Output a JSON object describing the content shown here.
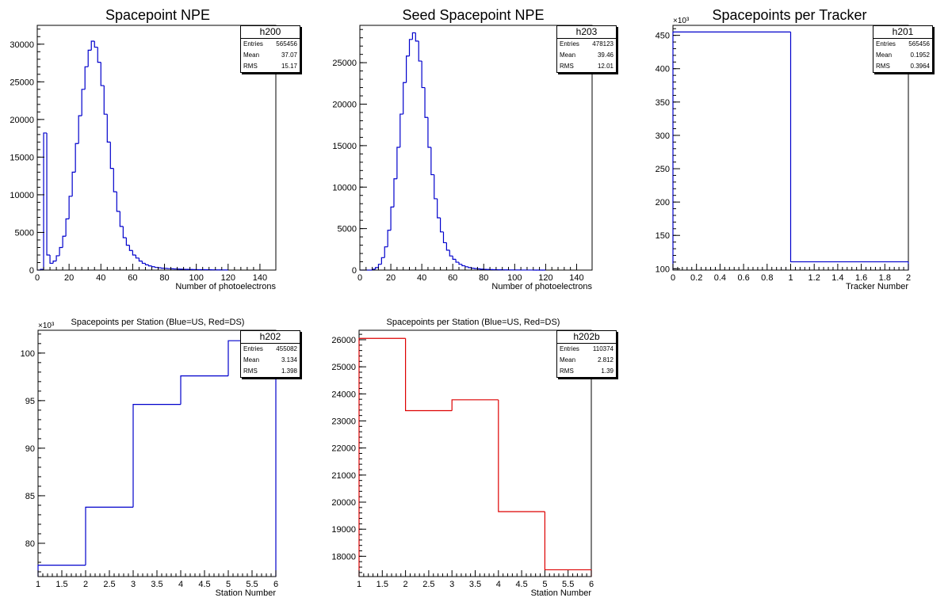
{
  "chart_data": [
    {
      "type": "bar",
      "id": "h200",
      "title": "Spacepoint NPE",
      "xlabel": "Number of photoelectrons",
      "ylabel": "",
      "xlim": [
        0,
        150
      ],
      "ylim": [
        0,
        32500
      ],
      "xticks": [
        0,
        20,
        40,
        60,
        80,
        100,
        120,
        140
      ],
      "xtick_labels": [
        "0",
        "20",
        "40",
        "60",
        "80",
        "100",
        "120",
        "140"
      ],
      "yticks": [
        0,
        5000,
        10000,
        15000,
        20000,
        25000,
        30000
      ],
      "ytick_labels": [
        "0",
        "5000",
        "10000",
        "15000",
        "20000",
        "25000",
        "30000"
      ],
      "y_exponent": "",
      "color": "#0000cc",
      "bin_edges": [
        0,
        2,
        4,
        6,
        8,
        10,
        12,
        14,
        16,
        18,
        20,
        22,
        24,
        26,
        28,
        30,
        32,
        34,
        36,
        38,
        40,
        42,
        44,
        46,
        48,
        50,
        52,
        54,
        56,
        58,
        60,
        62,
        64,
        66,
        68,
        70,
        72,
        74,
        76,
        78,
        80,
        82,
        84,
        86,
        88,
        90,
        92,
        94,
        96,
        98,
        100,
        102,
        104,
        106,
        108,
        110,
        112,
        114,
        116,
        118,
        120
      ],
      "values": [
        0,
        100,
        18200,
        2000,
        900,
        1200,
        1900,
        3000,
        4500,
        6800,
        9800,
        13000,
        16800,
        20500,
        24000,
        27000,
        29200,
        30400,
        29600,
        27600,
        24500,
        20700,
        17000,
        13500,
        10400,
        7800,
        5800,
        4300,
        3300,
        2600,
        2000,
        1600,
        1200,
        900,
        700,
        550,
        450,
        350,
        300,
        250,
        220,
        190,
        170,
        150,
        130,
        120,
        100,
        90,
        80,
        70,
        60,
        55,
        50,
        45,
        40,
        35,
        30,
        25,
        20,
        15
      ],
      "stats": {
        "name": "h200",
        "entries_label": "Entries",
        "entries": "565456",
        "mean_label": "Mean",
        "mean": "37.07",
        "rms_label": "RMS",
        "rms": "15.17"
      }
    },
    {
      "type": "bar",
      "id": "h203",
      "title": "Seed Spacepoint NPE",
      "xlabel": "Number of photoelectrons",
      "ylabel": "",
      "xlim": [
        0,
        150
      ],
      "ylim": [
        0,
        29500
      ],
      "xticks": [
        0,
        20,
        40,
        60,
        80,
        100,
        120,
        140
      ],
      "xtick_labels": [
        "0",
        "20",
        "40",
        "60",
        "80",
        "100",
        "120",
        "140"
      ],
      "yticks": [
        0,
        5000,
        10000,
        15000,
        20000,
        25000
      ],
      "ytick_labels": [
        "0",
        "5000",
        "10000",
        "15000",
        "20000",
        "25000"
      ],
      "y_exponent": "",
      "color": "#0000cc",
      "bin_edges": [
        0,
        2,
        4,
        6,
        8,
        10,
        12,
        14,
        16,
        18,
        20,
        22,
        24,
        26,
        28,
        30,
        32,
        34,
        36,
        38,
        40,
        42,
        44,
        46,
        48,
        50,
        52,
        54,
        56,
        58,
        60,
        62,
        64,
        66,
        68,
        70,
        72,
        74,
        76,
        78,
        80,
        82,
        84,
        86,
        88,
        90,
        92,
        94,
        96,
        98,
        100,
        102,
        104,
        106,
        108,
        110,
        112,
        114,
        116,
        118,
        120
      ],
      "values": [
        0,
        0,
        0,
        0,
        100,
        300,
        700,
        1500,
        2800,
        4800,
        7600,
        11000,
        14800,
        18800,
        22600,
        25800,
        27800,
        28600,
        27600,
        25200,
        22000,
        18400,
        14800,
        11500,
        8600,
        6300,
        4600,
        3300,
        2400,
        1700,
        1300,
        950,
        700,
        520,
        400,
        300,
        230,
        180,
        140,
        110,
        90,
        75,
        60,
        50,
        40,
        35,
        30,
        25,
        20,
        15,
        12,
        10,
        8,
        6,
        5,
        4,
        3,
        2,
        1,
        0
      ],
      "stats": {
        "name": "h203",
        "entries_label": "Entries",
        "entries": "478123",
        "mean_label": "Mean",
        "mean": "39.46",
        "rms_label": "RMS",
        "rms": "12.01"
      }
    },
    {
      "type": "bar",
      "id": "h201",
      "title": "Spacepoints per Tracker",
      "xlabel": "Tracker Number",
      "ylabel": "",
      "xlim": [
        0,
        2
      ],
      "ylim": [
        98,
        465
      ],
      "xticks": [
        0,
        0.2,
        0.4,
        0.6,
        0.8,
        1,
        1.2,
        1.4,
        1.6,
        1.8,
        2
      ],
      "xtick_labels": [
        "0",
        "0.2",
        "0.4",
        "0.6",
        "0.8",
        "1",
        "1.2",
        "1.4",
        "1.6",
        "1.8",
        "2"
      ],
      "yticks": [
        100,
        150,
        200,
        250,
        300,
        350,
        400,
        450
      ],
      "ytick_labels": [
        "100",
        "150",
        "200",
        "250",
        "300",
        "350",
        "400",
        "450"
      ],
      "y_exponent": "×10³",
      "color": "#0000cc",
      "bin_edges": [
        0,
        1,
        2
      ],
      "values": [
        455.082,
        110.374
      ],
      "stats": {
        "name": "h201",
        "entries_label": "Entries",
        "entries": "565456",
        "mean_label": "Mean",
        "mean": "0.1952",
        "rms_label": "RMS",
        "rms": "0.3964"
      }
    },
    {
      "type": "bar",
      "id": "h202",
      "title": "Spacepoints per Station (Blue=US, Red=DS)",
      "xlabel": "Station Number",
      "ylabel": "",
      "xlim": [
        1,
        6
      ],
      "ylim": [
        76.5,
        102.4
      ],
      "xticks": [
        1,
        1.5,
        2,
        2.5,
        3,
        3.5,
        4,
        4.5,
        5,
        5.5,
        6
      ],
      "xtick_labels": [
        "1",
        "1.5",
        "2",
        "2.5",
        "3",
        "3.5",
        "4",
        "4.5",
        "5",
        "5.5",
        "6"
      ],
      "yticks": [
        80,
        85,
        90,
        95,
        100
      ],
      "ytick_labels": [
        "80",
        "85",
        "90",
        "95",
        "100"
      ],
      "y_exponent": "×10³",
      "color": "#0000cc",
      "bin_edges": [
        1,
        2,
        3,
        4,
        5,
        6
      ],
      "values": [
        77.7,
        83.8,
        94.6,
        97.6,
        101.3
      ],
      "stats": {
        "name": "h202",
        "entries_label": "Entries",
        "entries": "455082",
        "mean_label": "Mean",
        "mean": "3.134",
        "rms_label": "RMS",
        "rms": "1.398"
      }
    },
    {
      "type": "bar",
      "id": "h202b",
      "title": "Spacepoints per Station (Blue=US, Red=DS)",
      "xlabel": "Station Number",
      "ylabel": "",
      "xlim": [
        1,
        6
      ],
      "ylim": [
        17250,
        26350
      ],
      "xticks": [
        1,
        1.5,
        2,
        2.5,
        3,
        3.5,
        4,
        4.5,
        5,
        5.5,
        6
      ],
      "xtick_labels": [
        "1",
        "1.5",
        "2",
        "2.5",
        "3",
        "3.5",
        "4",
        "4.5",
        "5",
        "5.5",
        "6"
      ],
      "yticks": [
        18000,
        19000,
        20000,
        21000,
        22000,
        23000,
        24000,
        25000,
        26000
      ],
      "ytick_labels": [
        "18000",
        "19000",
        "20000",
        "21000",
        "22000",
        "23000",
        "24000",
        "25000",
        "26000"
      ],
      "y_exponent": "",
      "color": "#dd0000",
      "bin_edges": [
        1,
        2,
        3,
        4,
        5,
        6
      ],
      "values": [
        26050,
        23380,
        23780,
        19650,
        17500
      ],
      "stats": {
        "name": "h202b",
        "entries_label": "Entries",
        "entries": "110374",
        "mean_label": "Mean",
        "mean": "2.812",
        "rms_label": "RMS",
        "rms": "1.39"
      }
    }
  ]
}
